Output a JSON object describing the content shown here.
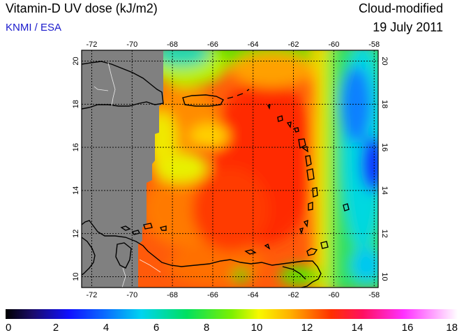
{
  "header": {
    "title": "Vitamin-D UV dose (kJ/m2)",
    "credit": "KNMI / ESA",
    "mode": "Cloud-modified",
    "date": "19 July 2011"
  },
  "map": {
    "lon_range": [
      -72.5,
      -57.8
    ],
    "lat_range": [
      9.5,
      20.5
    ],
    "lon_ticks": [
      -72,
      -70,
      -68,
      -66,
      -64,
      -62,
      -60,
      -58
    ],
    "lat_ticks": [
      10,
      12,
      14,
      16,
      18,
      20
    ]
  },
  "colorbar": {
    "ticks": [
      "0",
      "2",
      "4",
      "6",
      "8",
      "10",
      "12",
      "14",
      "16",
      "18"
    ],
    "min": 0,
    "max": 18
  }
}
